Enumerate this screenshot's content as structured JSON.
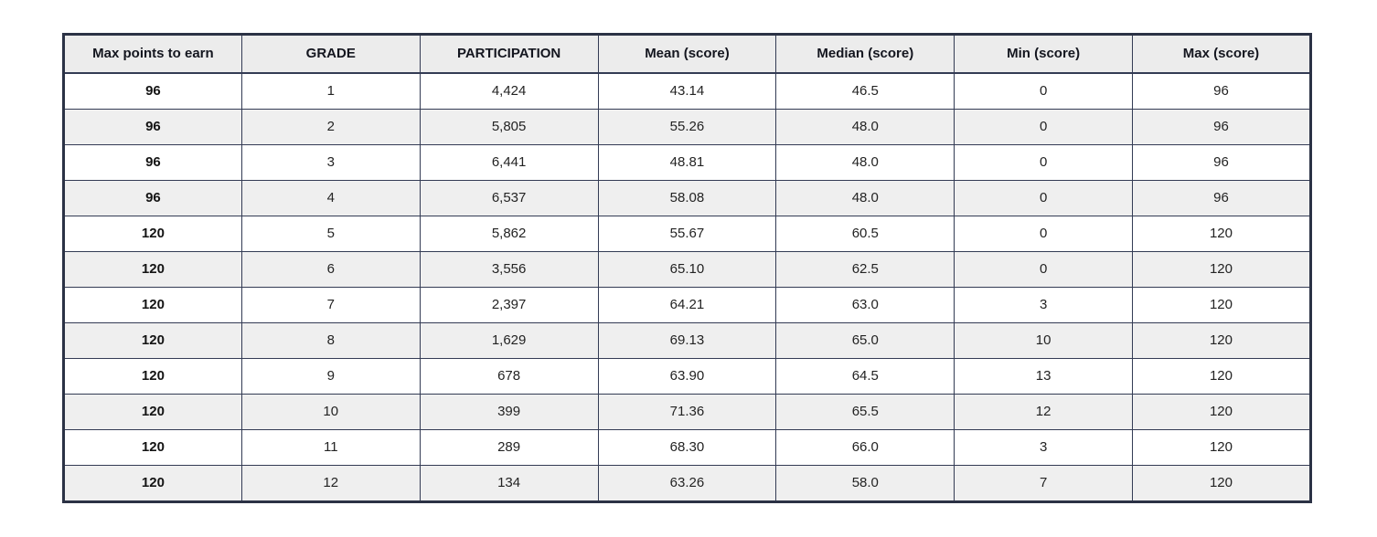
{
  "table": {
    "columns": [
      "Max points to earn",
      "GRADE",
      "PARTICIPATION",
      "Mean (score)",
      "Median (score)",
      "Min (score)",
      "Max (score)"
    ],
    "rows": [
      [
        "96",
        "1",
        "4,424",
        "43.14",
        "46.5",
        "0",
        "96"
      ],
      [
        "96",
        "2",
        "5,805",
        "55.26",
        "48.0",
        "0",
        "96"
      ],
      [
        "96",
        "3",
        "6,441",
        "48.81",
        "48.0",
        "0",
        "96"
      ],
      [
        "96",
        "4",
        "6,537",
        "58.08",
        "48.0",
        "0",
        "96"
      ],
      [
        "120",
        "5",
        "5,862",
        "55.67",
        "60.5",
        "0",
        "120"
      ],
      [
        "120",
        "6",
        "3,556",
        "65.10",
        "62.5",
        "0",
        "120"
      ],
      [
        "120",
        "7",
        "2,397",
        "64.21",
        "63.0",
        "3",
        "120"
      ],
      [
        "120",
        "8",
        "1,629",
        "69.13",
        "65.0",
        "10",
        "120"
      ],
      [
        "120",
        "9",
        "678",
        "63.90",
        "64.5",
        "13",
        "120"
      ],
      [
        "120",
        "10",
        "399",
        "71.36",
        "65.5",
        "12",
        "120"
      ],
      [
        "120",
        "11",
        "289",
        "68.30",
        "66.0",
        "3",
        "120"
      ],
      [
        "120",
        "12",
        "134",
        "63.26",
        "58.0",
        "7",
        "120"
      ]
    ]
  },
  "chart_data": {
    "type": "table",
    "title": "",
    "columns": [
      "Max points to earn",
      "GRADE",
      "PARTICIPATION",
      "Mean (score)",
      "Median (score)",
      "Min (score)",
      "Max (score)"
    ],
    "rows": [
      {
        "max_points_to_earn": 96,
        "grade": 1,
        "participation": 4424,
        "mean": 43.14,
        "median": 46.5,
        "min": 0,
        "max": 96
      },
      {
        "max_points_to_earn": 96,
        "grade": 2,
        "participation": 5805,
        "mean": 55.26,
        "median": 48.0,
        "min": 0,
        "max": 96
      },
      {
        "max_points_to_earn": 96,
        "grade": 3,
        "participation": 6441,
        "mean": 48.81,
        "median": 48.0,
        "min": 0,
        "max": 96
      },
      {
        "max_points_to_earn": 96,
        "grade": 4,
        "participation": 6537,
        "mean": 58.08,
        "median": 48.0,
        "min": 0,
        "max": 96
      },
      {
        "max_points_to_earn": 120,
        "grade": 5,
        "participation": 5862,
        "mean": 55.67,
        "median": 60.5,
        "min": 0,
        "max": 120
      },
      {
        "max_points_to_earn": 120,
        "grade": 6,
        "participation": 3556,
        "mean": 65.1,
        "median": 62.5,
        "min": 0,
        "max": 120
      },
      {
        "max_points_to_earn": 120,
        "grade": 7,
        "participation": 2397,
        "mean": 64.21,
        "median": 63.0,
        "min": 3,
        "max": 120
      },
      {
        "max_points_to_earn": 120,
        "grade": 8,
        "participation": 1629,
        "mean": 69.13,
        "median": 65.0,
        "min": 10,
        "max": 120
      },
      {
        "max_points_to_earn": 120,
        "grade": 9,
        "participation": 678,
        "mean": 63.9,
        "median": 64.5,
        "min": 13,
        "max": 120
      },
      {
        "max_points_to_earn": 120,
        "grade": 10,
        "participation": 399,
        "mean": 71.36,
        "median": 65.5,
        "min": 12,
        "max": 120
      },
      {
        "max_points_to_earn": 120,
        "grade": 11,
        "participation": 289,
        "mean": 68.3,
        "median": 66.0,
        "min": 3,
        "max": 120
      },
      {
        "max_points_to_earn": 120,
        "grade": 12,
        "participation": 134,
        "mean": 63.26,
        "median": 58.0,
        "min": 7,
        "max": 120
      }
    ]
  },
  "colors": {
    "frame_border": "#2b3245",
    "grid_border": "#333b54",
    "header_bg": "#ececec",
    "row_alt_bg": "#efefef",
    "row_bg": "#ffffff",
    "header_text": "#14161f",
    "body_text": "#232323"
  }
}
